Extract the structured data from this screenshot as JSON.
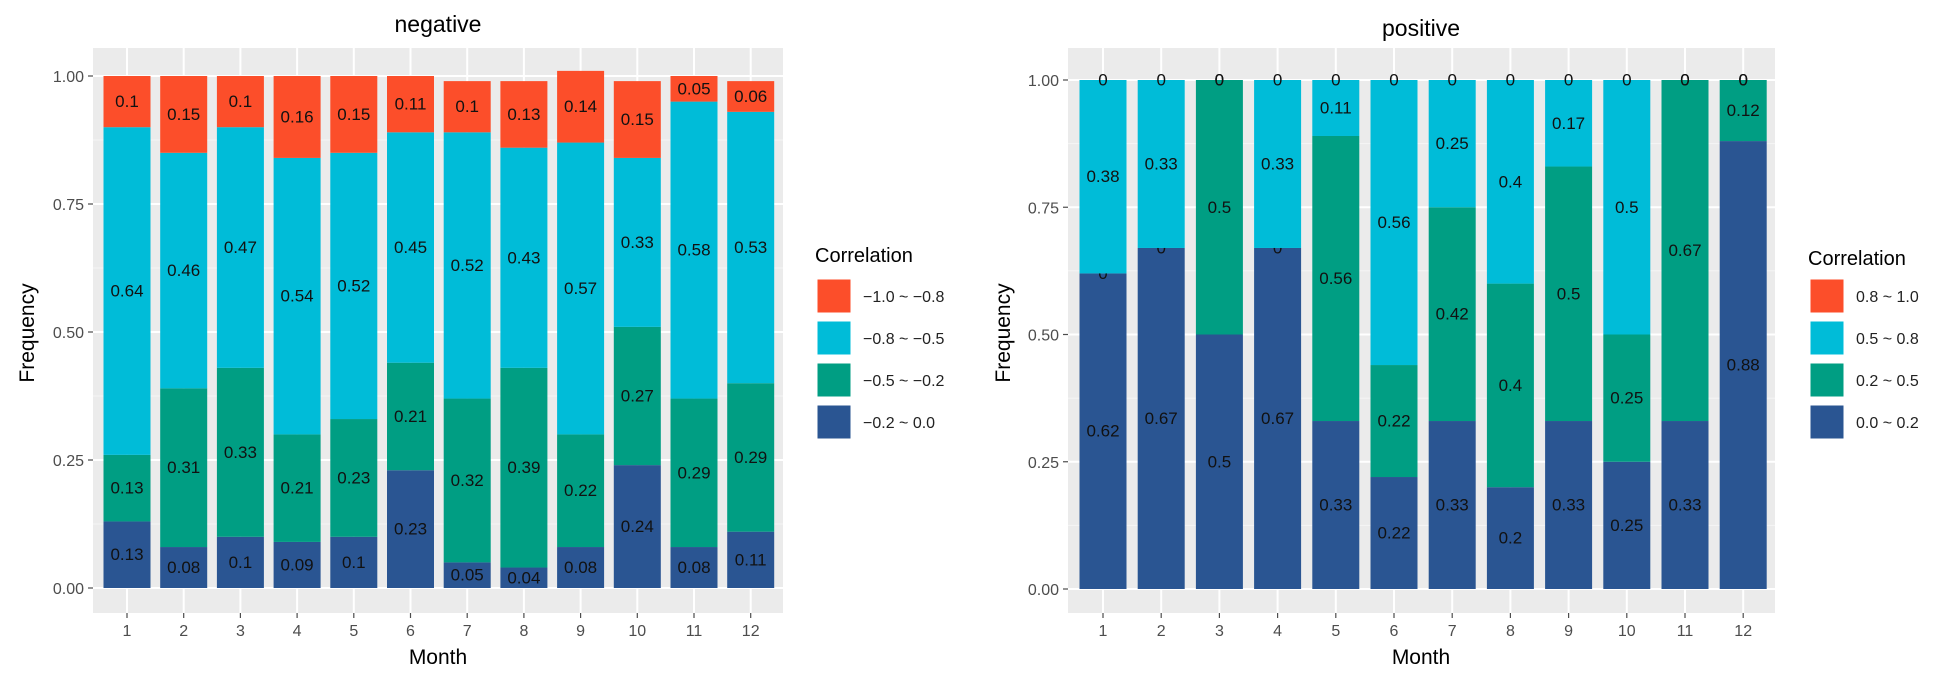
{
  "chart_data": [
    {
      "type": "stacked-bar",
      "title": "negative",
      "xlabel": "Month",
      "ylabel": "Frequency",
      "ylim": [
        0,
        1
      ],
      "yticks": [
        "0.00",
        "0.25",
        "0.50",
        "0.75",
        "1.00"
      ],
      "categories": [
        "1",
        "2",
        "3",
        "4",
        "5",
        "6",
        "7",
        "8",
        "9",
        "10",
        "11",
        "12"
      ],
      "legend_title": "Correlation",
      "legend": [
        {
          "label": "−1.0 ~ −0.8",
          "color": "#FC4E2A"
        },
        {
          "label": "−0.8 ~ −0.5",
          "color": "#00BCD8"
        },
        {
          "label": "−0.5 ~ −0.2",
          "color": "#009E83"
        },
        {
          "label": "−0.2 ~ 0.0",
          "color": "#2A5592"
        }
      ],
      "series": [
        {
          "name": "−0.2 ~ 0.0",
          "color": "#2A5592",
          "values": [
            0.13,
            0.08,
            0.1,
            0.09,
            0.1,
            0.23,
            0.05,
            0.04,
            0.08,
            0.24,
            0.08,
            0.11
          ],
          "labels": [
            "0.13",
            "0.08",
            "0.1",
            "0.09",
            "0.1",
            "0.23",
            "0.05",
            "0.04",
            "0.08",
            "0.24",
            "0.08",
            "0.11"
          ]
        },
        {
          "name": "−0.5 ~ −0.2",
          "color": "#009E83",
          "values": [
            0.13,
            0.31,
            0.33,
            0.21,
            0.23,
            0.21,
            0.32,
            0.39,
            0.22,
            0.27,
            0.29,
            0.29
          ],
          "labels": [
            "0.13",
            "0.31",
            "0.33",
            "0.21",
            "0.23",
            "0.21",
            "0.32",
            "0.39",
            "0.22",
            "0.27",
            "0.29",
            "0.29"
          ]
        },
        {
          "name": "−0.8 ~ −0.5",
          "color": "#00BCD8",
          "values": [
            0.64,
            0.46,
            0.47,
            0.54,
            0.52,
            0.45,
            0.52,
            0.43,
            0.57,
            0.33,
            0.58,
            0.53
          ],
          "labels": [
            "0.64",
            "0.46",
            "0.47",
            "0.54",
            "0.52",
            "0.45",
            "0.52",
            "0.43",
            "0.57",
            "0.33",
            "0.58",
            "0.53"
          ]
        },
        {
          "name": "−1.0 ~ −0.8",
          "color": "#FC4E2A",
          "values": [
            0.1,
            0.15,
            0.1,
            0.16,
            0.15,
            0.11,
            0.1,
            0.13,
            0.14,
            0.15,
            0.05,
            0.06
          ],
          "labels": [
            "0.1",
            "0.15",
            "0.1",
            "0.16",
            "0.15",
            "0.11",
            "0.1",
            "0.13",
            "0.14",
            "0.15",
            "0.05",
            "0.06"
          ]
        }
      ]
    },
    {
      "type": "stacked-bar",
      "title": "positive",
      "xlabel": "Month",
      "ylabel": "Frequency",
      "ylim": [
        0,
        1
      ],
      "yticks": [
        "0.00",
        "0.25",
        "0.50",
        "0.75",
        "1.00"
      ],
      "categories": [
        "1",
        "2",
        "3",
        "4",
        "5",
        "6",
        "7",
        "8",
        "9",
        "10",
        "11",
        "12"
      ],
      "legend_title": "Correlation",
      "legend": [
        {
          "label": "0.8 ~ 1.0",
          "color": "#FC4E2A"
        },
        {
          "label": "0.5 ~ 0.8",
          "color": "#00BCD8"
        },
        {
          "label": "0.2 ~ 0.5",
          "color": "#009E83"
        },
        {
          "label": "0.0 ~ 0.2",
          "color": "#2A5592"
        }
      ],
      "series": [
        {
          "name": "0.0 ~ 0.2",
          "color": "#2A5592",
          "values": [
            0.62,
            0.67,
            0.5,
            0.67,
            0.33,
            0.22,
            0.33,
            0.2,
            0.33,
            0.25,
            0.33,
            0.88
          ],
          "labels": [
            "0.62",
            "0.67",
            "0.5",
            "0.67",
            "0.33",
            "0.22",
            "0.33",
            "0.2",
            "0.33",
            "0.25",
            "0.33",
            "0.88"
          ]
        },
        {
          "name": "0.2 ~ 0.5",
          "color": "#009E83",
          "values": [
            0,
            0,
            0.5,
            0,
            0.56,
            0.22,
            0.42,
            0.4,
            0.5,
            0.25,
            0.67,
            0.12
          ],
          "labels": [
            "0",
            "0",
            "0.5",
            "0",
            "0.56",
            "0.22",
            "0.42",
            "0.4",
            "0.5",
            "0.25",
            "0.67",
            "0.12"
          ]
        },
        {
          "name": "0.5 ~ 0.8",
          "color": "#00BCD8",
          "values": [
            0.38,
            0.33,
            0,
            0.33,
            0.11,
            0.56,
            0.25,
            0.4,
            0.17,
            0.5,
            0,
            0
          ],
          "labels": [
            "0.38",
            "0.33",
            "0",
            "0.33",
            "0.11",
            "0.56",
            "0.25",
            "0.4",
            "0.17",
            "0.5",
            "0",
            "0"
          ]
        },
        {
          "name": "0.8 ~ 1.0",
          "color": "#FC4E2A",
          "values": [
            0,
            0,
            0,
            0,
            0,
            0,
            0,
            0,
            0,
            0,
            0,
            0
          ],
          "labels": [
            "0",
            "0",
            "0",
            "0",
            "0",
            "0",
            "0",
            "0",
            "0",
            "0",
            "0",
            "0"
          ]
        }
      ]
    }
  ]
}
